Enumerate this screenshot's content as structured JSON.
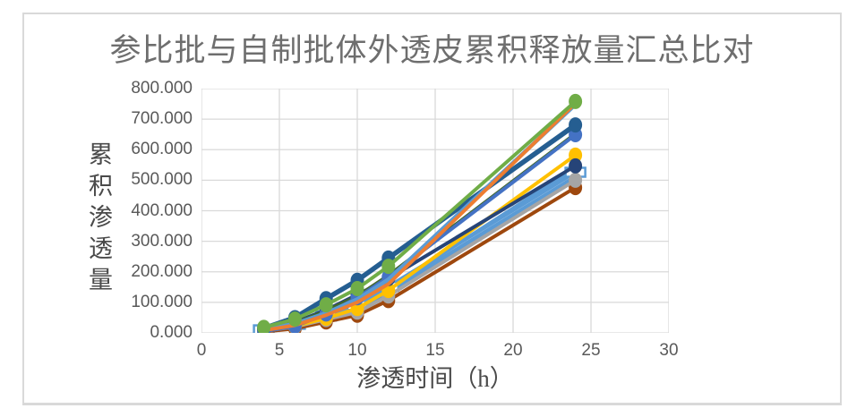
{
  "chart": {
    "title": "参比批与自制批体外透皮累积释放量汇总比对",
    "y_axis": {
      "title": "累积渗透量",
      "tick_labels": [
        "800.000",
        "700.000",
        "600.000",
        "500.000",
        "400.000",
        "300.000",
        "200.000",
        "100.000",
        "0.000"
      ]
    },
    "x_axis": {
      "title": "渗透时间（h）",
      "tick_labels": [
        "0",
        "5",
        "10",
        "15",
        "20",
        "25",
        "30"
      ]
    },
    "grid_color": "#d9d9d9",
    "border_color": "#d9d9d9"
  },
  "chart_data": {
    "type": "line",
    "title": "参比批与自制批体外透皮累积释放量汇总比对",
    "xlabel": "渗透时间（h）",
    "ylabel": "累积渗透量",
    "x": [
      4,
      6,
      8,
      10,
      12,
      24
    ],
    "xlim": [
      0,
      30
    ],
    "ylim": [
      0,
      800
    ],
    "x_tick_step": 5,
    "y_tick_step": 100,
    "grid": true,
    "legend_position": "none",
    "series": [
      {
        "name": "light-blue-line-3",
        "color": "#5B9BD5",
        "marker": "none",
        "width": 4,
        "values": [
          6,
          22,
          46,
          78,
          132,
          505
        ]
      },
      {
        "name": "light-blue-line-2",
        "color": "#5B9BD5",
        "marker": "none",
        "width": 4,
        "values": [
          7,
          24,
          50,
          82,
          138,
          512
        ]
      },
      {
        "name": "light-blue-line-1",
        "color": "#5B9BD5",
        "marker": "none",
        "width": 4,
        "values": [
          8,
          26,
          52,
          86,
          145,
          540
        ]
      },
      {
        "name": "light-blue-square",
        "color": "#5B9BD5",
        "marker": "square",
        "width": 4,
        "values": [
          10,
          28,
          55,
          90,
          152,
          526
        ]
      },
      {
        "name": "brown-circle",
        "color": "#9E480E",
        "marker": "circle",
        "width": 4,
        "values": [
          4,
          14,
          36,
          58,
          106,
          476
        ]
      },
      {
        "name": "gray-circle",
        "color": "#A5A5A5",
        "marker": "circle",
        "width": 4,
        "values": [
          6,
          20,
          44,
          68,
          121,
          500
        ]
      },
      {
        "name": "yellow-circle",
        "color": "#FFC000",
        "marker": "circle",
        "width": 4,
        "values": [
          7,
          22,
          48,
          80,
          139,
          582
        ]
      },
      {
        "name": "navy-circle",
        "color": "#264478",
        "marker": "circle",
        "width": 4,
        "values": [
          12,
          35,
          75,
          125,
          178,
          547
        ]
      },
      {
        "name": "dark-green-line",
        "color": "#43682B",
        "marker": "none",
        "width": 4,
        "values": [
          10,
          32,
          72,
          120,
          188,
          652
        ]
      },
      {
        "name": "blue-circle",
        "color": "#4472C4",
        "marker": "circle",
        "width": 4,
        "values": [
          5,
          22,
          62,
          115,
          183,
          649
        ]
      },
      {
        "name": "dark-steel-blue-circle",
        "color": "#255E91",
        "marker": "circle",
        "width": 5.5,
        "values": [
          15,
          50,
          112,
          172,
          245,
          681
        ]
      },
      {
        "name": "light-blue-line-top",
        "color": "#5B9BD5",
        "marker": "none",
        "width": 4.5,
        "values": [
          12,
          30,
          65,
          110,
          175,
          748
        ]
      },
      {
        "name": "orange-line",
        "color": "#ED7D31",
        "marker": "none",
        "width": 4,
        "values": [
          8,
          25,
          58,
          100,
          160,
          752
        ]
      },
      {
        "name": "green-circle",
        "color": "#70AD47",
        "marker": "circle",
        "width": 4,
        "values": [
          18,
          45,
          92,
          145,
          218,
          758
        ]
      }
    ]
  }
}
